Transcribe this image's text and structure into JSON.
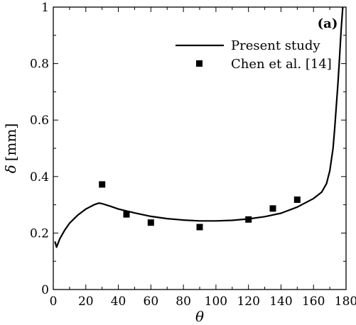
{
  "chart_data": {
    "type": "line",
    "panel_label": "(a)",
    "xlabel": "θ",
    "ylabel_symbol": "δ",
    "ylabel_unit": "[mm]",
    "xlim": [
      0,
      180
    ],
    "ylim": [
      0,
      1
    ],
    "xticks": [
      0,
      20,
      40,
      60,
      80,
      100,
      120,
      140,
      160,
      180
    ],
    "yticks": [
      0,
      0.2,
      0.4,
      0.6,
      0.8,
      1
    ],
    "legend_position": "top-right",
    "grid": false,
    "series": [
      {
        "name": "Present study",
        "style": "line",
        "color": "#000000",
        "x": [
          1,
          2,
          4,
          7,
          10,
          15,
          20,
          25,
          28,
          30,
          35,
          40,
          50,
          60,
          70,
          80,
          90,
          100,
          110,
          120,
          130,
          140,
          150,
          160,
          165,
          168,
          170,
          172,
          173,
          174,
          175,
          176,
          177,
          178
        ],
        "y": [
          0.17,
          0.15,
          0.18,
          0.21,
          0.235,
          0.263,
          0.285,
          0.3,
          0.306,
          0.304,
          0.295,
          0.285,
          0.271,
          0.259,
          0.251,
          0.246,
          0.243,
          0.243,
          0.245,
          0.25,
          0.258,
          0.27,
          0.292,
          0.322,
          0.345,
          0.375,
          0.42,
          0.5,
          0.57,
          0.65,
          0.73,
          0.82,
          0.92,
          1.0
        ]
      },
      {
        "name": "Chen et al. [14]",
        "style": "marker",
        "color": "#000000",
        "x": [
          30,
          45,
          60,
          90,
          120,
          135,
          150
        ],
        "y": [
          0.372,
          0.266,
          0.237,
          0.221,
          0.248,
          0.287,
          0.318
        ]
      }
    ]
  }
}
